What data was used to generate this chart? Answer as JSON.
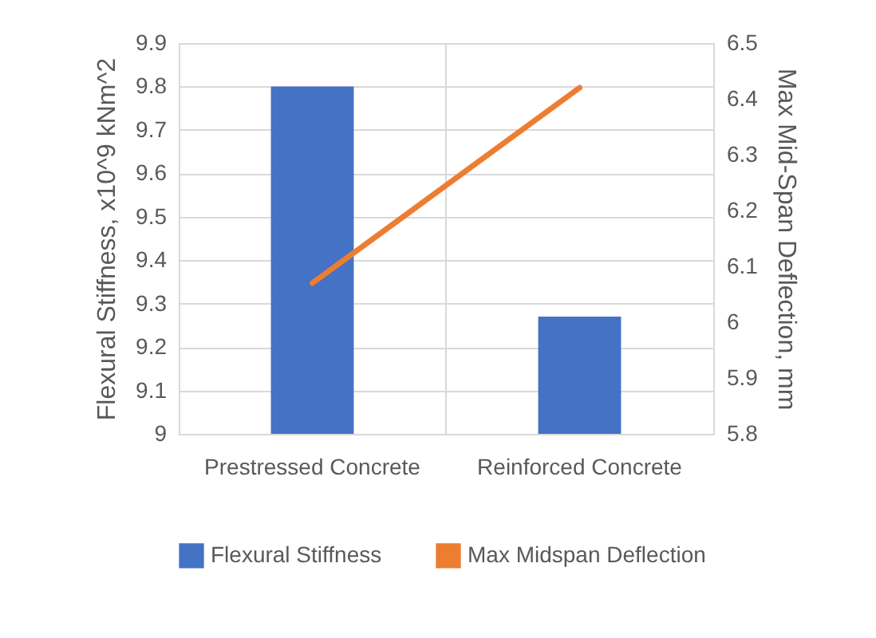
{
  "chart_data": {
    "type": "bar",
    "categories": [
      "Prestressed Concrete",
      "Reinforced Concrete"
    ],
    "ylabel": "Flexural Stiffness, x10^9 kNm^2",
    "y2label": "Max Mid-Span Deflection, mm",
    "ylim": [
      9,
      9.9
    ],
    "yticks": [
      9,
      9.1,
      9.2,
      9.3,
      9.4,
      9.5,
      9.6,
      9.7,
      9.8,
      9.9
    ],
    "y2lim": [
      5.8,
      6.5
    ],
    "y2ticks": [
      5.8,
      5.9,
      6,
      6.1,
      6.2,
      6.3,
      6.4,
      6.5
    ],
    "grid": true,
    "legend": "bottom",
    "series": [
      {
        "name": "Flexural Stiffness",
        "color": "#4472c4",
        "values": [
          9.8,
          9.27
        ]
      },
      {
        "name": "Max Midspan Deflection",
        "type": "line",
        "axis": "y2",
        "color": "#ed7d31",
        "values": [
          6.07,
          6.42
        ]
      }
    ]
  }
}
